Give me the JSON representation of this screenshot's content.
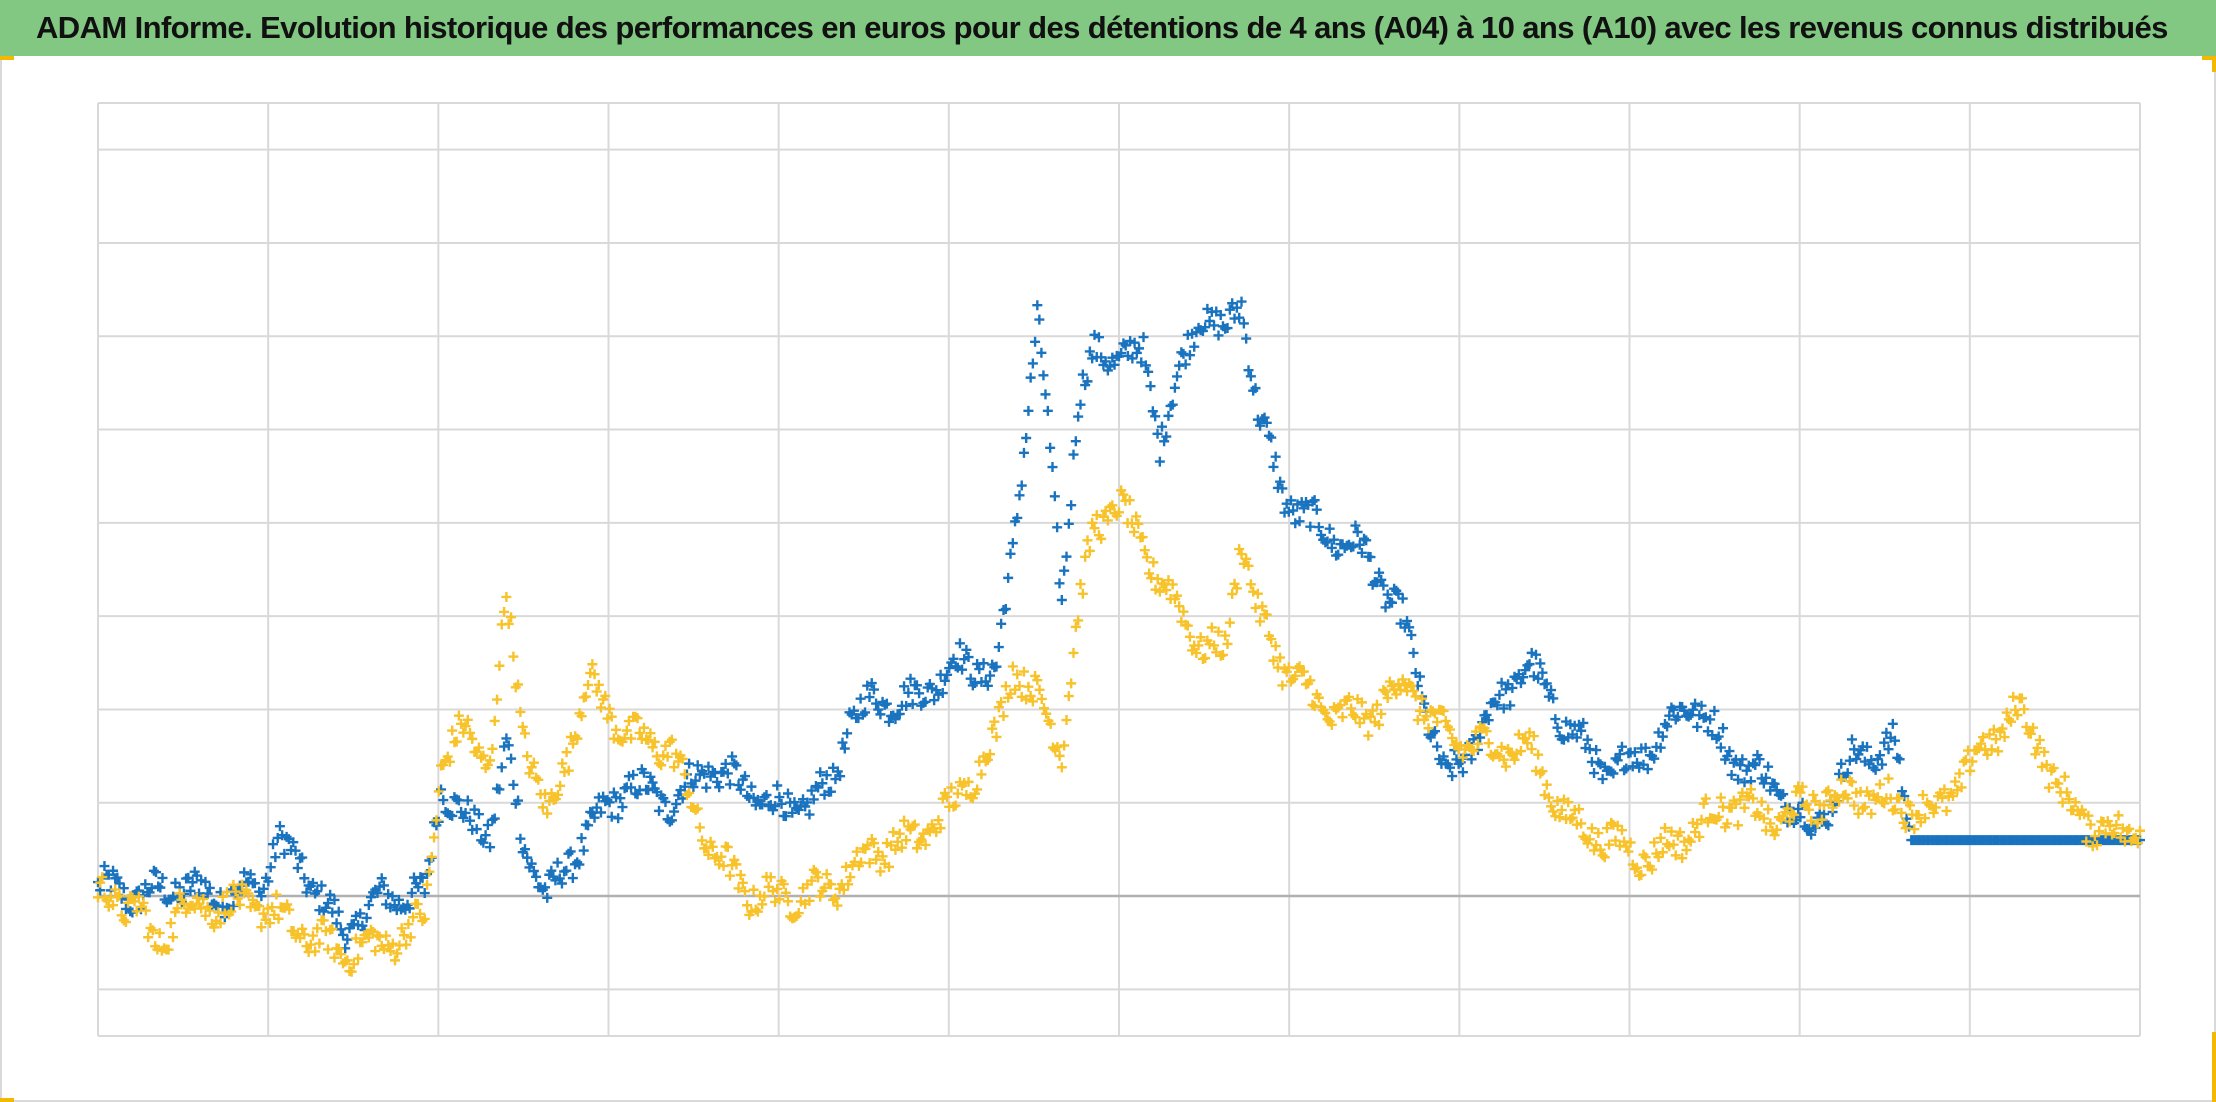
{
  "title": "ADAM Informe. Evolution historique des performances en euros pour des détentions de 4 ans (A04) à 10 ans (A10) avec les revenus connus distribués",
  "colors": {
    "header_bg": "#82c882",
    "series_a": "#1a73be",
    "series_b": "#f7c22a",
    "grid": "#d9d9d9",
    "baseline": "#b0b0b0",
    "accent_corner": "#f5b800"
  },
  "chart_data": {
    "type": "scatter",
    "marker": "plus",
    "title": "ADAM Informe. Evolution historique des performances en euros pour des détentions de 4 ans (A04) à 10 ans (A10) avec les revenus connus distribués",
    "xlabel": "",
    "ylabel": "",
    "xlim": [
      0,
      12.5
    ],
    "ylim": [
      -0.75,
      4.25
    ],
    "x_gridlines": 12,
    "y_gridlines": [
      -0.75,
      -0.5,
      0,
      0.5,
      1,
      1.5,
      2,
      2.5,
      3,
      3.5,
      4,
      4.25
    ],
    "grid": true,
    "legend": "none",
    "series": [
      {
        "color": "#1a73be",
        "x": [
          0,
          0.25,
          0.5,
          0.75,
          1,
          1.1,
          1.25,
          1.5,
          1.75,
          2,
          2.1,
          2.25,
          2.4,
          2.5,
          2.6,
          2.75,
          2.8,
          3,
          3.25,
          3.5,
          3.75,
          4,
          4.25,
          4.5,
          4.6,
          4.75,
          5,
          5.25,
          5.5,
          5.6,
          5.75,
          5.8,
          5.9,
          6,
          6.1,
          6.25,
          6.4,
          6.5,
          6.75,
          6.9,
          7,
          7.1,
          7.25,
          7.5,
          7.75,
          8,
          8.25,
          8.5,
          8.75,
          9,
          9.25,
          9.5,
          9.75,
          10,
          10.25,
          10.5,
          10.75,
          11,
          11.1,
          11.25,
          11.5,
          11.75,
          12,
          12.25,
          12.5
        ],
        "y": [
          0.05,
          0.0,
          0.05,
          0.0,
          0.05,
          0.3,
          0.15,
          -0.2,
          0.0,
          0.0,
          0.6,
          0.4,
          0.35,
          0.8,
          0.3,
          0.0,
          0.05,
          0.35,
          0.6,
          0.5,
          0.7,
          0.55,
          0.45,
          0.6,
          0.95,
          1.05,
          1.05,
          1.25,
          1.2,
          1.85,
          3.1,
          2.65,
          1.6,
          2.65,
          2.9,
          2.9,
          2.9,
          2.45,
          3.15,
          3.0,
          3.2,
          2.6,
          2.15,
          1.95,
          1.85,
          1.45,
          0.6,
          0.95,
          1.25,
          0.9,
          0.65,
          0.8,
          1.05,
          0.75,
          0.6,
          0.35,
          0.75,
          0.8,
          0.3,
          0.3,
          0.3,
          0.3,
          0.3,
          0.3,
          0.3
        ]
      },
      {
        "color": "#f7c22a",
        "x": [
          0,
          0.25,
          0.35,
          0.5,
          0.75,
          1,
          1.25,
          1.5,
          1.75,
          1.9,
          2,
          2.1,
          2.25,
          2.4,
          2.5,
          2.6,
          2.75,
          3,
          3.25,
          3.5,
          3.75,
          4,
          4.25,
          4.5,
          4.75,
          5,
          5.25,
          5.5,
          5.6,
          5.75,
          5.9,
          6,
          6.1,
          6.25,
          6.5,
          6.75,
          6.9,
          7,
          7.1,
          7.25,
          7.5,
          7.75,
          8,
          8.25,
          8.5,
          8.75,
          9,
          9.25,
          9.5,
          9.75,
          10,
          10.25,
          10.5,
          10.75,
          11,
          11.25,
          11.5,
          11.75,
          11.9,
          12,
          12.25,
          12.5
        ],
        "y": [
          0.0,
          -0.05,
          -0.3,
          -0.05,
          -0.05,
          -0.05,
          -0.2,
          -0.3,
          -0.25,
          -0.2,
          -0.1,
          0.7,
          0.9,
          0.7,
          1.6,
          0.9,
          0.4,
          1.15,
          0.85,
          0.8,
          0.25,
          0.0,
          0.0,
          0.05,
          0.25,
          0.3,
          0.5,
          0.85,
          1.25,
          1.05,
          0.8,
          1.5,
          2.0,
          2.1,
          1.7,
          1.35,
          1.3,
          1.95,
          1.5,
          1.25,
          1.0,
          0.95,
          1.15,
          0.85,
          0.8,
          0.8,
          0.4,
          0.3,
          0.2,
          0.35,
          0.5,
          0.4,
          0.5,
          0.55,
          0.5,
          0.45,
          0.75,
          1.0,
          0.8,
          0.55,
          0.35,
          0.35
        ]
      }
    ]
  }
}
